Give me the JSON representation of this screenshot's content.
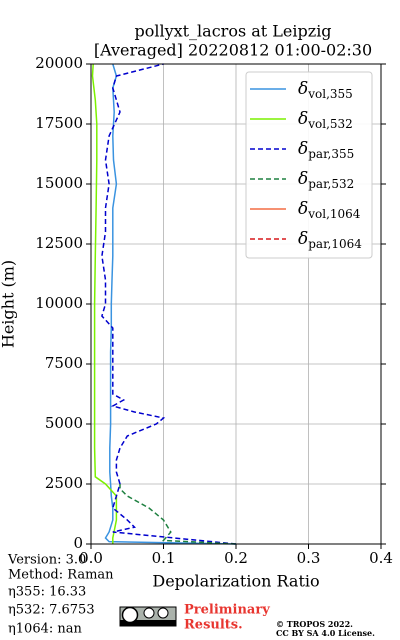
{
  "chart_data": {
    "type": "profile",
    "title": [
      "pollyxt_lacros at Leipzig",
      "[Averaged] 20220812 01:00-02:30"
    ],
    "xlabel": "Depolarization Ratio",
    "ylabel": "Height (m)",
    "xlim": [
      0,
      0.4
    ],
    "ylim": [
      0,
      20000
    ],
    "xticks": [
      {
        "value": 0,
        "label": "0.0"
      },
      0.1,
      0.2,
      0.3,
      0.4
    ],
    "yticks": [
      0,
      2500,
      5000,
      7500,
      10000,
      12500,
      15000,
      17500,
      20000
    ],
    "grid": true,
    "legend": "upper right",
    "series": [
      {
        "name": "δvol,355",
        "color": "#3a93e0",
        "dash": false,
        "heights": [
          0,
          100,
          250,
          500,
          1000,
          1500,
          2000,
          2500,
          3000,
          4000,
          5000,
          6000,
          7000,
          8000,
          9000,
          10000,
          11000,
          12000,
          13000,
          14000,
          15000,
          16000,
          17000,
          18000,
          19000,
          19500,
          20000
        ],
        "values": [
          0.2,
          0.025,
          0.02,
          0.025,
          0.03,
          0.03,
          0.028,
          0.027,
          0.026,
          0.026,
          0.027,
          0.027,
          0.027,
          0.027,
          0.028,
          0.028,
          0.029,
          0.03,
          0.03,
          0.03,
          0.035,
          0.031,
          0.03,
          0.032,
          0.03,
          0.035,
          0.03
        ]
      },
      {
        "name": "δvol,532",
        "color": "#7cf000",
        "dash": false,
        "heights": [
          0,
          250,
          1000,
          2000,
          2500,
          2800,
          4000,
          6000,
          8000,
          10000,
          12000,
          14000,
          16000,
          17500,
          18500,
          19500,
          20000
        ],
        "values": [
          0.03,
          0.03,
          0.035,
          0.035,
          0.02,
          0.006,
          0.005,
          0.005,
          0.005,
          0.005,
          0.006,
          0.007,
          0.008,
          0.008,
          0.006,
          0.002,
          0.003
        ]
      },
      {
        "name": "δpar,355",
        "color": "#0000cd",
        "dash": true,
        "heights": [
          0,
          500,
          700,
          1000,
          1500,
          2000,
          2500,
          3000,
          3500,
          4000,
          4500,
          5000,
          5250,
          5500,
          5750,
          6000,
          6250,
          7000,
          8000,
          9000,
          9500,
          10000,
          11000,
          12000,
          13000,
          14000,
          15000,
          16000,
          17000,
          18000,
          19000,
          19500,
          20000
        ],
        "values": [
          0.2,
          0.03,
          0.06,
          0.05,
          0.03,
          0.035,
          0.04,
          0.035,
          0.035,
          0.04,
          0.05,
          0.09,
          0.1,
          0.06,
          0.03,
          0.045,
          0.03,
          0.03,
          0.03,
          0.03,
          0.015,
          0.02,
          0.02,
          0.015,
          0.02,
          0.02,
          0.025,
          0.02,
          0.025,
          0.04,
          0.03,
          0.035,
          0.1
        ]
      },
      {
        "name": "δpar,532",
        "color": "#1e8040",
        "dash": true,
        "heights": [
          0,
          150,
          500,
          1000,
          1500,
          2000,
          2300,
          2500
        ],
        "values": [
          0.2,
          0.1,
          0.11,
          0.1,
          0.08,
          0.05,
          0.04,
          0.04
        ]
      },
      {
        "name": "δvol,1064",
        "color": "#f46d43",
        "dash": false,
        "heights": [],
        "values": []
      },
      {
        "name": "δpar,1064",
        "color": "#d7191c",
        "dash": true,
        "heights": [],
        "values": []
      }
    ],
    "notes": [
      "Version: 3.0",
      "Method: Raman",
      "η355:  16.33",
      "η532: 7.6753",
      "η1064:    nan"
    ],
    "stamp": [
      "Preliminary",
      "Results."
    ],
    "license": [
      "© TROPOS 2022.",
      "CC BY SA 4.0 License."
    ]
  }
}
